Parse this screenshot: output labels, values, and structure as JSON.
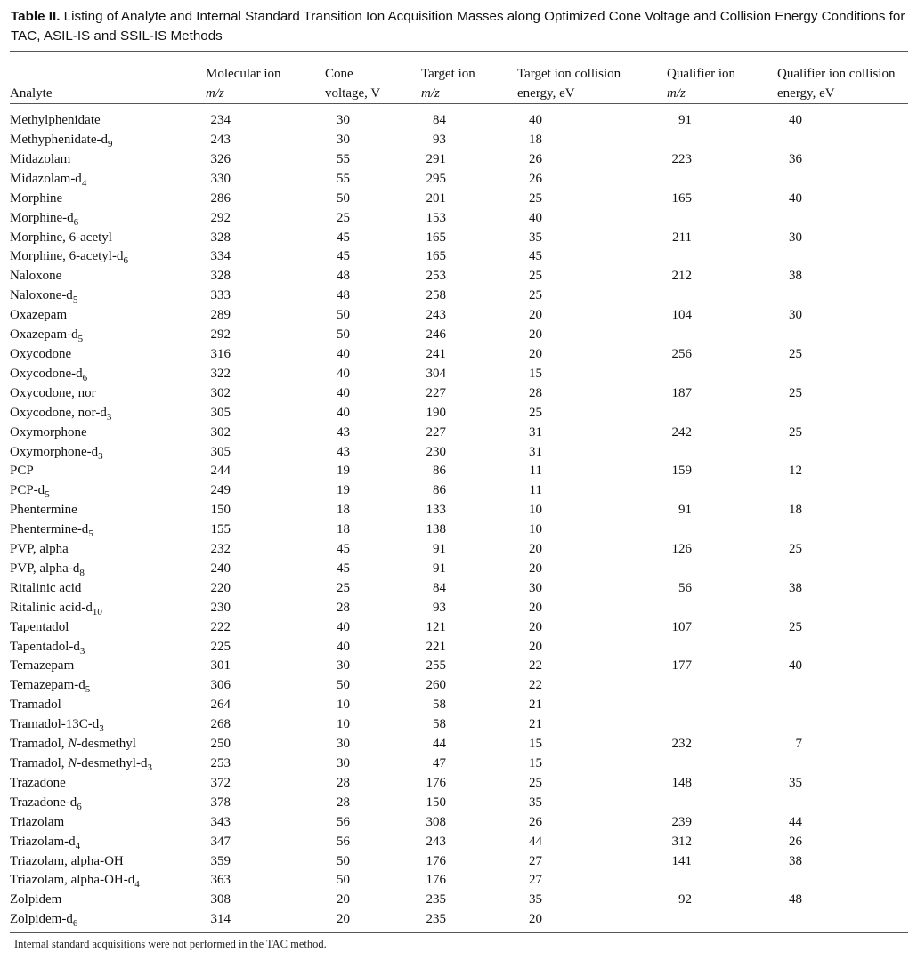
{
  "caption": {
    "label": "Table II.",
    "text": "Listing of Analyte and Internal Standard Transition Ion Acquisition Masses along Optimized Cone Voltage and Collision Energy Conditions for TAC, ASIL-IS and SSIL-IS Methods"
  },
  "columns": [
    {
      "line1": "",
      "line2": "Analyte",
      "italic2": false
    },
    {
      "line1": "Molecular ion",
      "line2": "m/z",
      "italic2": true
    },
    {
      "line1": "Cone",
      "line2": "voltage, V",
      "italic2": false
    },
    {
      "line1": "Target ion",
      "line2": "m/z",
      "italic2": true
    },
    {
      "line1": "Target ion collision",
      "line2": "energy, eV",
      "italic2": false
    },
    {
      "line1": "Qualifier ion",
      "line2": "m/z",
      "italic2": true
    },
    {
      "line1": "Qualifier ion collision",
      "line2": "energy, eV",
      "italic2": false
    }
  ],
  "rows": [
    {
      "name": "Methylphenidate",
      "mol": "234",
      "cone": "30",
      "target": "84",
      "tce": "40",
      "qual": "91",
      "qce": "40"
    },
    {
      "name": "Methyphenidate-d",
      "sub": "9",
      "mol": "243",
      "cone": "30",
      "target": "93",
      "tce": "18",
      "qual": "",
      "qce": ""
    },
    {
      "name": "Midazolam",
      "mol": "326",
      "cone": "55",
      "target": "291",
      "tce": "26",
      "qual": "223",
      "qce": "36"
    },
    {
      "name": "Midazolam-d",
      "sub": "4",
      "mol": "330",
      "cone": "55",
      "target": "295",
      "tce": "26",
      "qual": "",
      "qce": ""
    },
    {
      "name": "Morphine",
      "mol": "286",
      "cone": "50",
      "target": "201",
      "tce": "25",
      "qual": "165",
      "qce": "40"
    },
    {
      "name": "Morphine-d",
      "sub": "6",
      "mol": "292",
      "cone": "25",
      "target": "153",
      "tce": "40",
      "qual": "",
      "qce": ""
    },
    {
      "name": "Morphine, 6-acetyl",
      "mol": "328",
      "cone": "45",
      "target": "165",
      "tce": "35",
      "qual": "211",
      "qce": "30"
    },
    {
      "name": "Morphine, 6-acetyl-d",
      "sub": "6",
      "mol": "334",
      "cone": "45",
      "target": "165",
      "tce": "45",
      "qual": "",
      "qce": ""
    },
    {
      "name": "Naloxone",
      "mol": "328",
      "cone": "48",
      "target": "253",
      "tce": "25",
      "qual": "212",
      "qce": "38"
    },
    {
      "name": "Naloxone-d",
      "sub": "5",
      "mol": "333",
      "cone": "48",
      "target": "258",
      "tce": "25",
      "qual": "",
      "qce": ""
    },
    {
      "name": "Oxazepam",
      "mol": "289",
      "cone": "50",
      "target": "243",
      "tce": "20",
      "qual": "104",
      "qce": "30"
    },
    {
      "name": "Oxazepam-d",
      "sub": "5",
      "mol": "292",
      "cone": "50",
      "target": "246",
      "tce": "20",
      "qual": "",
      "qce": ""
    },
    {
      "name": "Oxycodone",
      "mol": "316",
      "cone": "40",
      "target": "241",
      "tce": "20",
      "qual": "256",
      "qce": "25"
    },
    {
      "name": "Oxycodone-d",
      "sub": "6",
      "mol": "322",
      "cone": "40",
      "target": "304",
      "tce": "15",
      "qual": "",
      "qce": ""
    },
    {
      "name": "Oxycodone, nor",
      "mol": "302",
      "cone": "40",
      "target": "227",
      "tce": "28",
      "qual": "187",
      "qce": "25"
    },
    {
      "name": "Oxycodone, nor-d",
      "sub": "3",
      "mol": "305",
      "cone": "40",
      "target": "190",
      "tce": "25",
      "qual": "",
      "qce": ""
    },
    {
      "name": "Oxymorphone",
      "mol": "302",
      "cone": "43",
      "target": "227",
      "tce": "31",
      "qual": "242",
      "qce": "25"
    },
    {
      "name": "Oxymorphone-d",
      "sub": "3",
      "mol": "305",
      "cone": "43",
      "target": "230",
      "tce": "31",
      "qual": "",
      "qce": ""
    },
    {
      "name": "PCP",
      "mol": "244",
      "cone": "19",
      "target": "86",
      "tce": "11",
      "qual": "159",
      "qce": "12"
    },
    {
      "name": "PCP-d",
      "sub": "5",
      "mol": "249",
      "cone": "19",
      "target": "86",
      "tce": "11",
      "qual": "",
      "qce": ""
    },
    {
      "name": "Phentermine",
      "mol": "150",
      "cone": "18",
      "target": "133",
      "tce": "10",
      "qual": "91",
      "qce": "18"
    },
    {
      "name": "Phentermine-d",
      "sub": "5",
      "mol": "155",
      "cone": "18",
      "target": "138",
      "tce": "10",
      "qual": "",
      "qce": ""
    },
    {
      "name": "PVP, alpha",
      "mol": "232",
      "cone": "45",
      "target": "91",
      "tce": "20",
      "qual": "126",
      "qce": "25"
    },
    {
      "name": "PVP, alpha-d",
      "sub": "8",
      "mol": "240",
      "cone": "45",
      "target": "91",
      "tce": "20",
      "qual": "",
      "qce": ""
    },
    {
      "name": "Ritalinic acid",
      "mol": "220",
      "cone": "25",
      "target": "84",
      "tce": "30",
      "qual": "56",
      "qce": "38"
    },
    {
      "name": "Ritalinic acid-d",
      "sub": "10",
      "mol": "230",
      "cone": "28",
      "target": "93",
      "tce": "20",
      "qual": "",
      "qce": ""
    },
    {
      "name": "Tapentadol",
      "mol": "222",
      "cone": "40",
      "target": "121",
      "tce": "20",
      "qual": "107",
      "qce": "25"
    },
    {
      "name": "Tapentadol-d",
      "sub": "3",
      "mol": "225",
      "cone": "40",
      "target": "221",
      "tce": "20",
      "qual": "",
      "qce": ""
    },
    {
      "name": "Temazepam",
      "mol": "301",
      "cone": "30",
      "target": "255",
      "tce": "22",
      "qual": "177",
      "qce": "40"
    },
    {
      "name": "Temazepam-d",
      "sub": "5",
      "mol": "306",
      "cone": "50",
      "target": "260",
      "tce": "22",
      "qual": "",
      "qce": ""
    },
    {
      "name": "Tramadol",
      "mol": "264",
      "cone": "10",
      "target": "58",
      "tce": "21",
      "qual": "",
      "qce": ""
    },
    {
      "name": "Tramadol-13C-d",
      "sub": "3",
      "mol": "268",
      "cone": "10",
      "target": "58",
      "tce": "21",
      "qual": "",
      "qce": ""
    },
    {
      "name": "Tramadol, ",
      "ital": "N",
      "rest": "-desmethyl",
      "mol": "250",
      "cone": "30",
      "target": "44",
      "tce": "15",
      "qual": "232",
      "qce": "7"
    },
    {
      "name": "Tramadol, ",
      "ital": "N",
      "rest": "-desmethyl-d",
      "sub": "3",
      "mol": "253",
      "cone": "30",
      "target": "47",
      "tce": "15",
      "qual": "",
      "qce": ""
    },
    {
      "name": "Trazadone",
      "mol": "372",
      "cone": "28",
      "target": "176",
      "tce": "25",
      "qual": "148",
      "qce": "35"
    },
    {
      "name": "Trazadone-d",
      "sub": "6",
      "mol": "378",
      "cone": "28",
      "target": "150",
      "tce": "35",
      "qual": "",
      "qce": ""
    },
    {
      "name": "Triazolam",
      "mol": "343",
      "cone": "56",
      "target": "308",
      "tce": "26",
      "qual": "239",
      "qce": "44"
    },
    {
      "name": "Triazolam-d",
      "sub": "4",
      "mol": "347",
      "cone": "56",
      "target": "243",
      "tce": "44",
      "qual": "312",
      "qce": "26"
    },
    {
      "name": "Triazolam, alpha-OH",
      "mol": "359",
      "cone": "50",
      "target": "176",
      "tce": "27",
      "qual": "141",
      "qce": "38"
    },
    {
      "name": "Triazolam, alpha-OH-d",
      "sub": "4",
      "mol": "363",
      "cone": "50",
      "target": "176",
      "tce": "27",
      "qual": "",
      "qce": ""
    },
    {
      "name": "Zolpidem",
      "mol": "308",
      "cone": "20",
      "target": "235",
      "tce": "35",
      "qual": "92",
      "qce": "48"
    },
    {
      "name": "Zolpidem-d",
      "sub": "6",
      "mol": "314",
      "cone": "20",
      "target": "235",
      "tce": "20",
      "qual": "",
      "qce": ""
    }
  ],
  "footnote": "Internal standard acquisitions were not performed in the TAC method."
}
